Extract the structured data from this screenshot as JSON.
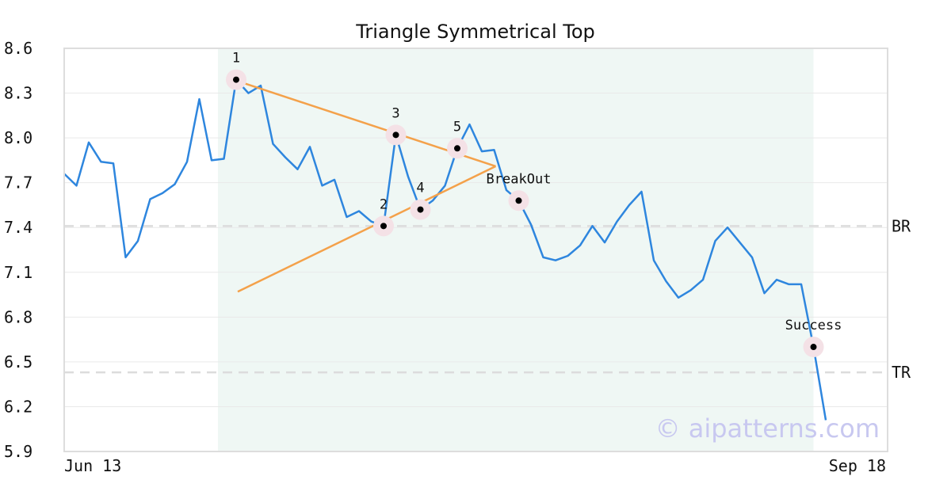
{
  "chart_data": {
    "type": "line",
    "title": "Triangle Symmetrical Top",
    "xlabel": "",
    "ylabel": "",
    "x_tick_labels": [
      "Jun 13",
      "Sep 18"
    ],
    "y_ticks": [
      "5.9",
      "6.2",
      "6.5",
      "6.8",
      "7.1",
      "7.4",
      "7.7",
      "8.0",
      "8.3",
      "8.6"
    ],
    "ylim": [
      5.9,
      8.6
    ],
    "grid": true,
    "line_color": "#2e86de",
    "series": [
      {
        "values": [
          7.76,
          7.68,
          7.97,
          7.84,
          7.83,
          7.2,
          7.31,
          7.59,
          7.63,
          7.69,
          7.84,
          8.26,
          7.85,
          7.86,
          8.39,
          8.3,
          8.35,
          7.96,
          7.87,
          7.79,
          7.94,
          7.68,
          7.72,
          7.47,
          7.51,
          7.44,
          7.41,
          8.02,
          7.74,
          7.52,
          7.58,
          7.68,
          7.93,
          8.09,
          7.91,
          7.92,
          7.65,
          7.58,
          7.42,
          7.2,
          7.18,
          7.21,
          7.28,
          7.41,
          7.3,
          7.44,
          7.55,
          7.64,
          7.18,
          7.04,
          6.93,
          6.98,
          7.05,
          7.31,
          7.4,
          7.3,
          7.2,
          6.96,
          7.05,
          7.02,
          7.02,
          6.6,
          6.11
        ]
      }
    ],
    "shaded_region": {
      "start_index": 12,
      "end_index": 61,
      "color": "#eff7f4"
    },
    "trend_lines": [
      {
        "from": [
          14,
          8.38
        ],
        "to": [
          35,
          7.81
        ],
        "color": "#f4a14a"
      },
      {
        "from": [
          14,
          6.97
        ],
        "to": [
          35,
          7.81
        ],
        "color": "#f4a14a"
      }
    ],
    "reference_lines": [
      {
        "label": "BR",
        "value": 7.41
      },
      {
        "label": "TR",
        "value": 6.43
      }
    ],
    "annotations": [
      {
        "label": "1",
        "index": 14,
        "value": 8.39
      },
      {
        "label": "2",
        "index": 26,
        "value": 7.41
      },
      {
        "label": "3",
        "index": 27,
        "value": 8.02
      },
      {
        "label": "4",
        "index": 29,
        "value": 7.52
      },
      {
        "label": "5",
        "index": 32,
        "value": 7.93
      },
      {
        "label": "BreakOut",
        "index": 37,
        "value": 7.58
      },
      {
        "label": "Success",
        "index": 61,
        "value": 6.6
      }
    ],
    "watermark": "© aipatterns.com"
  }
}
